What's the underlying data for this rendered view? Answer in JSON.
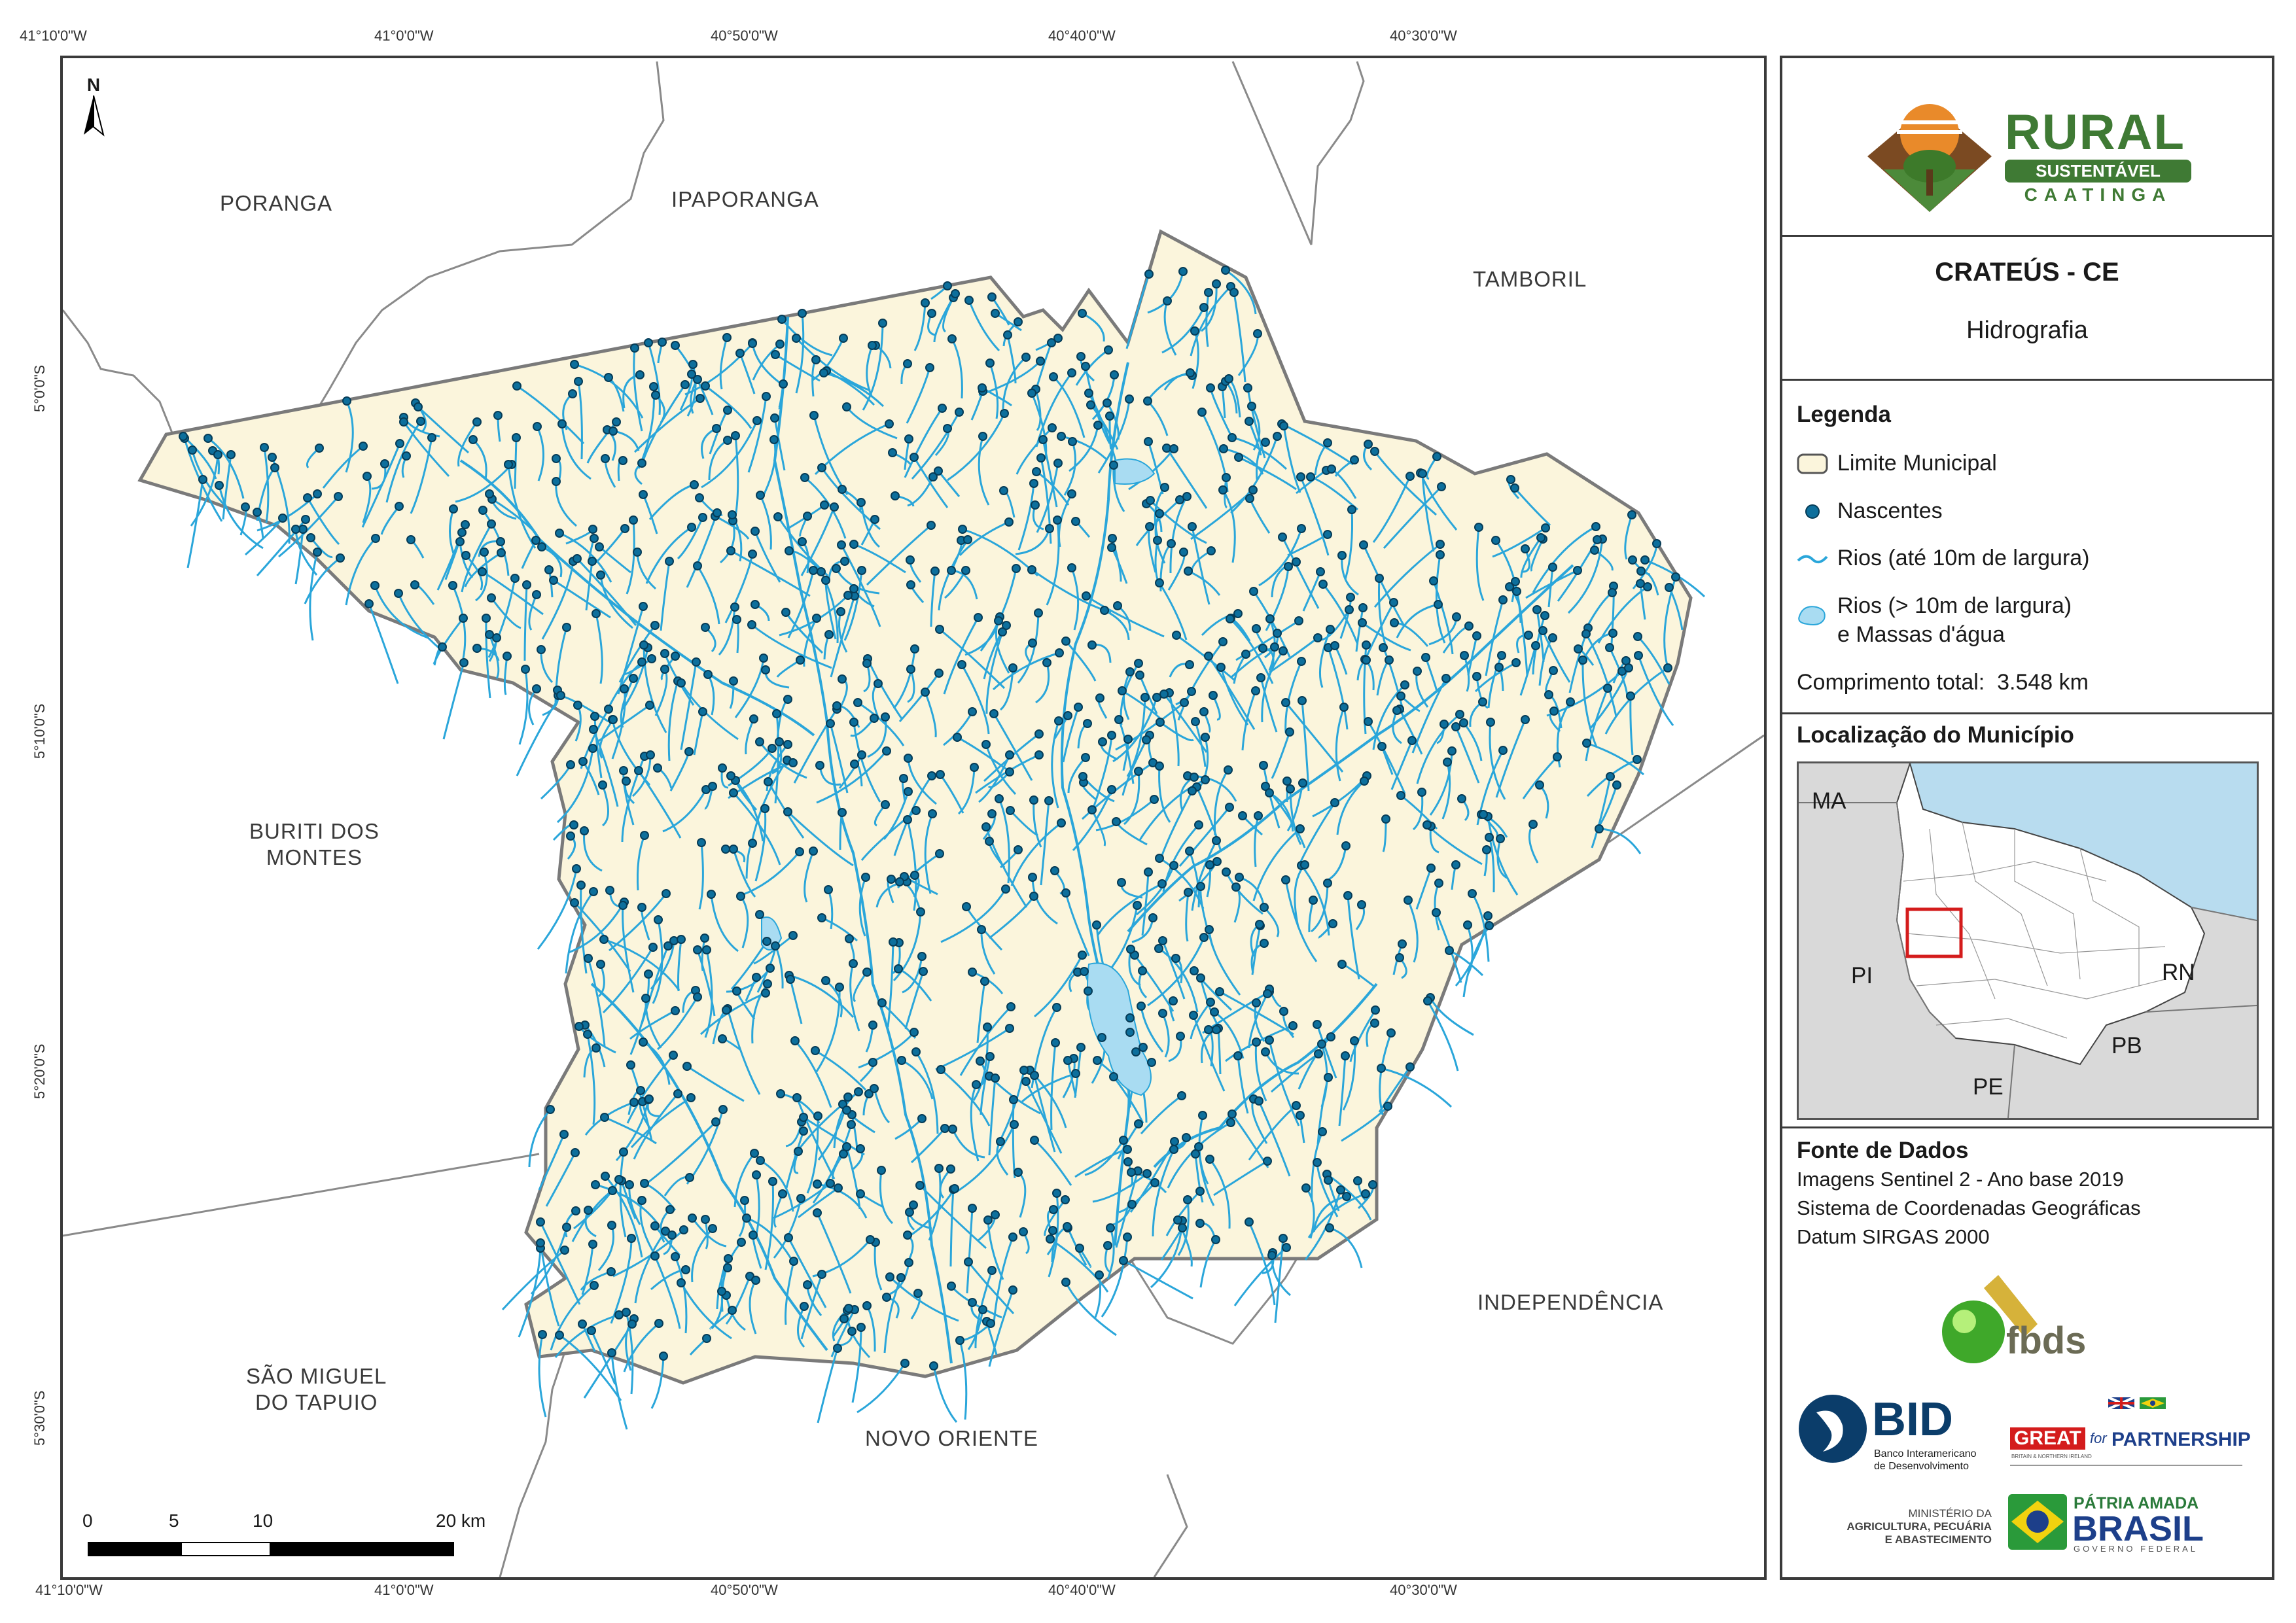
{
  "map": {
    "top_ticks": [
      "41°10'0\"W",
      "41°0'0\"W",
      "40°50'0\"W",
      "40°40'0\"W",
      "40°30'0\"W"
    ],
    "bottom_ticks": [
      "41°10'0\"W",
      "41°0'0\"W",
      "40°50'0\"W",
      "40°40'0\"W",
      "40°30'0\"W"
    ],
    "left_ticks": [
      "5°0'0\"S",
      "5°10'0\"S",
      "5°20'0\"S",
      "5°30'0\"S"
    ],
    "north_label": "N",
    "neighbors": {
      "poranga": "PORANGA",
      "ipaporanga": "IPAPORANGA",
      "tamboril": "TAMBORIL",
      "buriti_1": "BURITI DOS",
      "buriti_2": "MONTES",
      "sao_miguel_1": "SÃO MIGUEL",
      "sao_miguel_2": "DO TAPUIO",
      "novo_oriente": "NOVO ORIENTE",
      "independencia": "INDEPENDÊNCIA"
    },
    "scale_labels": [
      "0",
      "5",
      "10",
      "20 km"
    ],
    "colors": {
      "municipality_fill": "#fbf5dc",
      "river": "#2aa6da",
      "spring": "#0d6f9c",
      "boundary": "#7a7a7a"
    }
  },
  "sidebar": {
    "logo": {
      "line1": "RURAL",
      "line2": "SUSTENTÁVEL",
      "line3": "CAATINGA"
    },
    "title": "CRATEÚS - CE",
    "subtitle": "Hidrografia",
    "legend_title": "Legenda",
    "legend": {
      "limite": "Limite Municipal",
      "nascentes": "Nascentes",
      "rios": "Rios (até 10m de largura)",
      "massas_1": "Rios (> 10m de largura)",
      "massas_2": "e Massas d'água"
    },
    "total_length": "Comprimento total:  3.548 km",
    "location_title": "Localização do Município",
    "inset_labels": {
      "ma": "MA",
      "pi": "PI",
      "rn": "RN",
      "pb": "PB",
      "pe": "PE"
    },
    "source_title": "Fonte de Dados",
    "source_lines": [
      "Imagens Sentinel 2 - Ano base 2019",
      "Sistema de Coordenadas Geográficas",
      "Datum SIRGAS 2000"
    ],
    "fbds": "fbds",
    "bid": {
      "name": "BID",
      "sub1": "Banco Interamericano",
      "sub2": "de Desenvolvimento"
    },
    "great": {
      "great": "GREAT",
      "for": "for",
      "partnership": "PARTNERSHIP",
      "sub": "BRITAIN & NORTHERN IRELAND"
    },
    "ministerio": [
      "MINISTÉRIO DA",
      "AGRICULTURA, PECUÁRIA",
      "E ABASTECIMENTO"
    ],
    "patria": {
      "line1": "PÁTRIA AMADA",
      "line2": "BRASIL",
      "line3": "GOVERNO FEDERAL"
    }
  }
}
